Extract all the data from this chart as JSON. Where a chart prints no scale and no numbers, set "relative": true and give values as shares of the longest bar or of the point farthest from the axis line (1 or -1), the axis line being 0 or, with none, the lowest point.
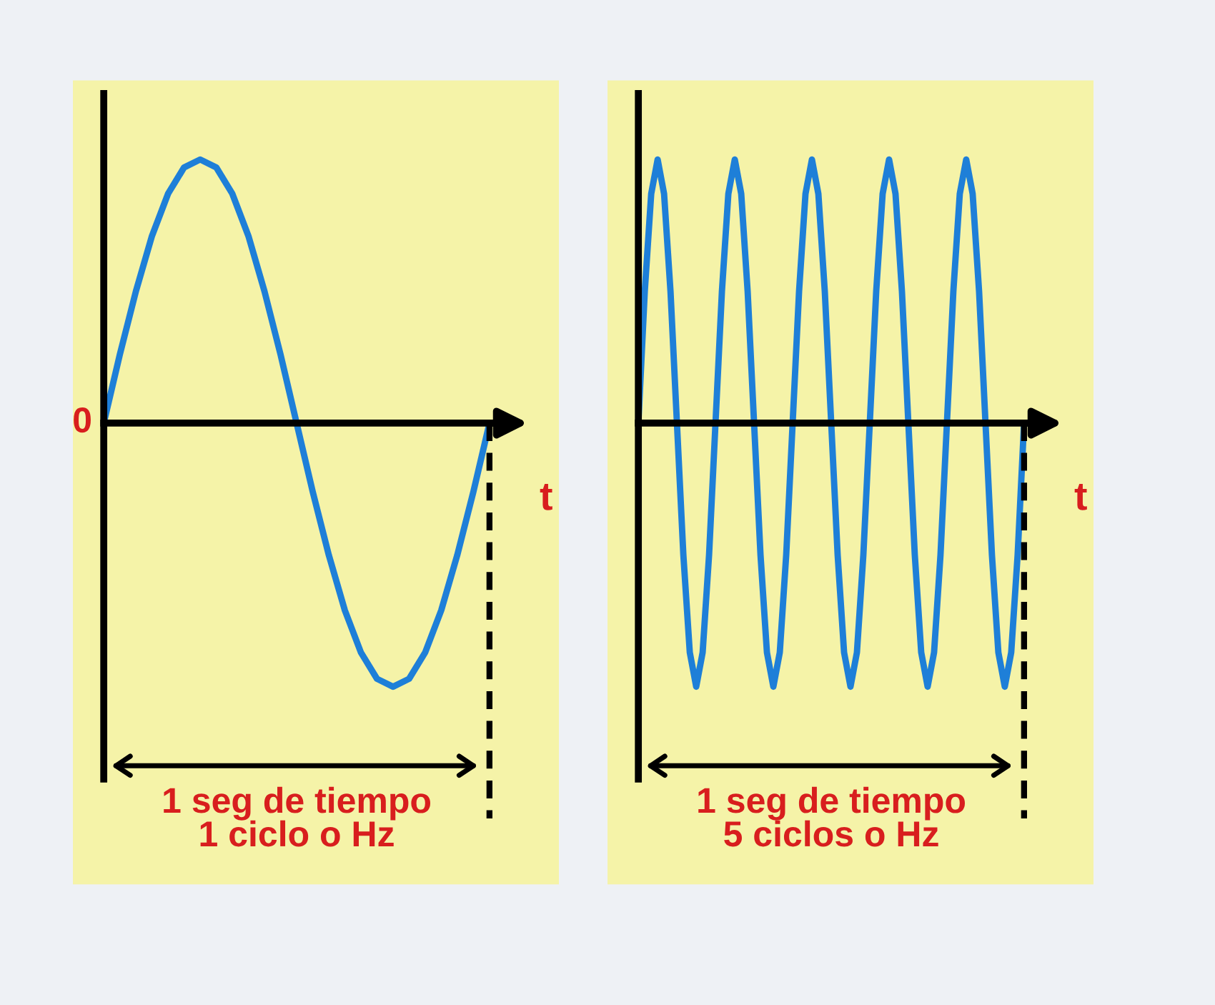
{
  "chart_data": [
    {
      "type": "line",
      "relative": true,
      "xlabel": "t",
      "annotations": [
        "0",
        "1 seg de tiempo\n1 ciclo o Hz"
      ],
      "categories": [
        null,
        null,
        null,
        null,
        null,
        null,
        null,
        null,
        null,
        null,
        null,
        null,
        null,
        null,
        null,
        null,
        null,
        null,
        null,
        null,
        null,
        null,
        null,
        null,
        null
      ],
      "series": [
        {
          "color": "#1e7fd8",
          "values": [
            0,
            0.26,
            0.5,
            0.71,
            0.87,
            0.97,
            1,
            0.97,
            0.87,
            0.71,
            0.5,
            0.26,
            0,
            -0.26,
            -0.5,
            -0.71,
            -0.87,
            -0.97,
            -1,
            -0.97,
            -0.87,
            -0.71,
            -0.5,
            -0.26,
            0
          ]
        }
      ]
    },
    {
      "type": "line",
      "relative": true,
      "xlabel": "t",
      "annotations": [
        "1 seg de tiempo\n5 ciclos o Hz"
      ],
      "categories": [
        null,
        null,
        null,
        null,
        null,
        null,
        null,
        null,
        null,
        null,
        null,
        null,
        null,
        null,
        null,
        null,
        null,
        null,
        null,
        null,
        null,
        null,
        null,
        null,
        null,
        null,
        null,
        null,
        null,
        null,
        null,
        null,
        null,
        null,
        null,
        null,
        null,
        null,
        null,
        null,
        null,
        null,
        null,
        null,
        null,
        null,
        null,
        null,
        null,
        null,
        null,
        null,
        null,
        null,
        null,
        null,
        null,
        null,
        null,
        null,
        null
      ],
      "series": [
        {
          "color": "#1e7fd8",
          "values": [
            0,
            0.5,
            0.87,
            1,
            0.87,
            0.5,
            0,
            -0.5,
            -0.87,
            -1,
            -0.87,
            -0.5,
            0,
            0.5,
            0.87,
            1,
            0.87,
            0.5,
            0,
            -0.5,
            -0.87,
            -1,
            -0.87,
            -0.5,
            0,
            0.5,
            0.87,
            1,
            0.87,
            0.5,
            0,
            -0.5,
            -0.87,
            -1,
            -0.87,
            -0.5,
            0,
            0.5,
            0.87,
            1,
            0.87,
            0.5,
            0,
            -0.5,
            -0.87,
            -1,
            -0.87,
            -0.5,
            0,
            0.5,
            0.87,
            1,
            0.87,
            0.5,
            0,
            -0.5,
            -0.87,
            -1,
            -0.87,
            -0.5,
            0
          ]
        }
      ]
    }
  ]
}
